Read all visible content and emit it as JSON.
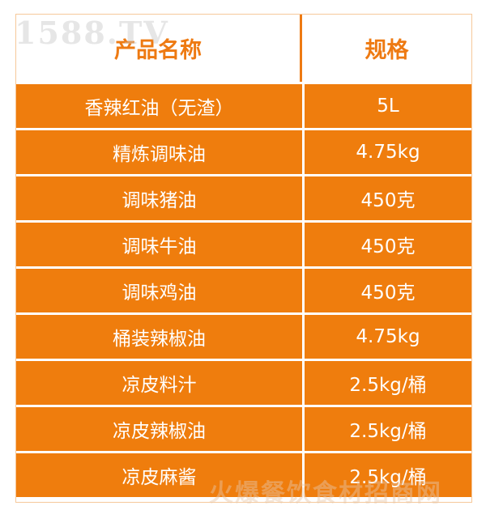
{
  "table": {
    "headers": [
      "产品名称",
      "规格"
    ],
    "rows": [
      [
        "香辣红油（无渣）",
        "5L"
      ],
      [
        "精炼调味油",
        "4.75kg"
      ],
      [
        "调味猪油",
        "450克"
      ],
      [
        "调味牛油",
        "450克"
      ],
      [
        "调味鸡油",
        "450克"
      ],
      [
        "桶装辣椒油",
        "4.75kg"
      ],
      [
        "凉皮料汁",
        "2.5kg/桶"
      ],
      [
        "凉皮辣椒油",
        "2.5kg/桶"
      ],
      [
        "凉皮麻酱",
        "2.5kg/桶"
      ]
    ]
  },
  "watermarks": {
    "top": "1588.TV",
    "bottom": "火爆餐饮食材招商网"
  },
  "colors": {
    "accent": "#ef7d0d",
    "text_on_accent": "#ffffff"
  }
}
